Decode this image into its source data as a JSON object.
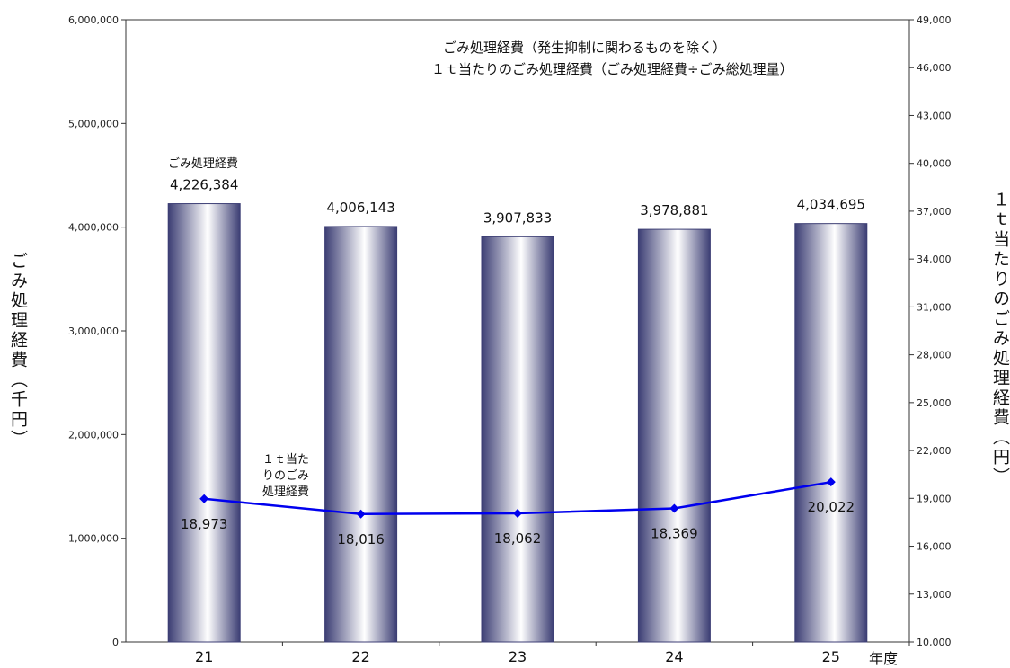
{
  "chart_data": {
    "type": "bar",
    "categories": [
      "21",
      "22",
      "23",
      "24",
      "25"
    ],
    "xlabel": "年度",
    "ylabel_left": "ごみ処理経費（千円）",
    "ylabel_right": "１ｔ当たりのごみ処理経費（円）",
    "ylim_left": [
      0,
      6000000
    ],
    "ylim_right": [
      10000,
      49000
    ],
    "yticks_left": [
      "0",
      "1,000,000",
      "2,000,000",
      "3,000,000",
      "4,000,000",
      "5,000,000",
      "6,000,000"
    ],
    "yticks_right": [
      "10,000",
      "13,000",
      "16,000",
      "19,000",
      "22,000",
      "25,000",
      "28,000",
      "31,000",
      "34,000",
      "37,000",
      "40,000",
      "43,000",
      "46,000",
      "49,000"
    ],
    "series": [
      {
        "name": "ごみ処理経費（発生抑制に関わるものを除く）",
        "type": "bar",
        "axis": "left",
        "values": [
          4226384,
          4006143,
          3907833,
          3978881,
          4034695
        ],
        "labels": [
          "4,226,384",
          "4,006,143",
          "3,907,833",
          "3,978,881",
          "4,034,695"
        ],
        "color": "#3c3e74"
      },
      {
        "name": "１ｔ当たりのごみ処理経費（ごみ処理経費÷ごみ総処理量）",
        "type": "line",
        "axis": "right",
        "values": [
          18973,
          18016,
          18062,
          18369,
          20022
        ],
        "labels": [
          "18,973",
          "18,016",
          "18,062",
          "18,369",
          "20,022"
        ],
        "color": "#0000ee"
      }
    ],
    "annotations": {
      "bar_series": "ごみ処理経費",
      "line_series": [
        "１ｔ当た",
        "りのごみ",
        "処理経費"
      ]
    },
    "legend": "top-right",
    "grid": false
  }
}
